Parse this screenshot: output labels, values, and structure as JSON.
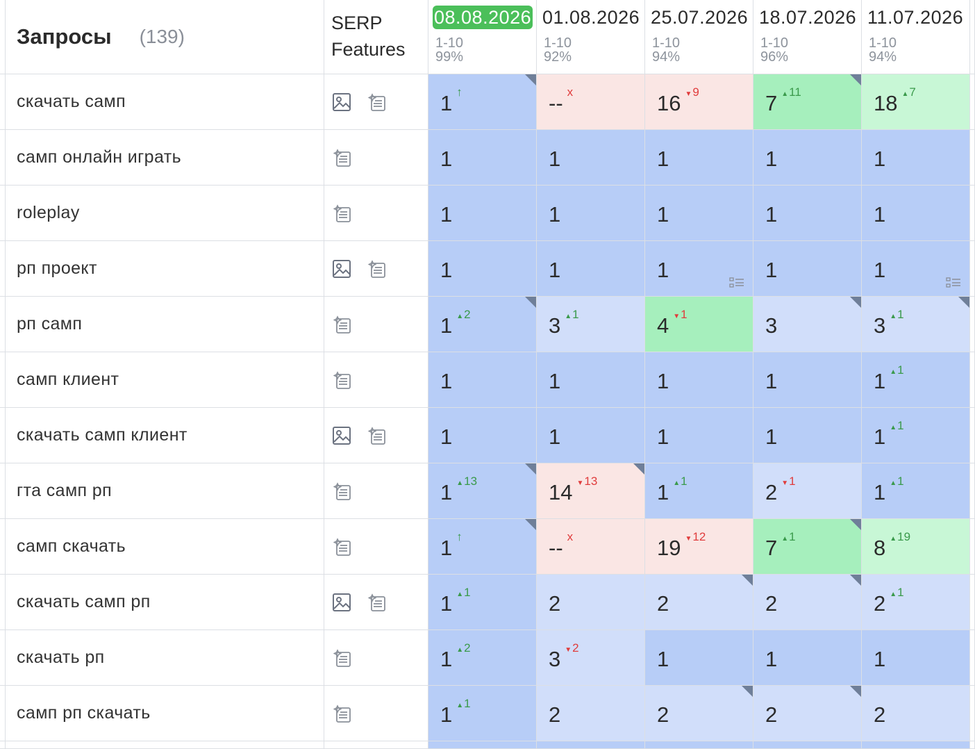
{
  "header": {
    "queries_title": "Запросы",
    "queries_count": "(139)",
    "serp_line1": "SERP",
    "serp_line2": "Features",
    "dates": [
      {
        "label": "08.08.2026",
        "range": "1-10",
        "percent": "99%",
        "active": true
      },
      {
        "label": "01.08.2026",
        "range": "1-10",
        "percent": "92%",
        "active": false
      },
      {
        "label": "25.07.2026",
        "range": "1-10",
        "percent": "94%",
        "active": false
      },
      {
        "label": "18.07.2026",
        "range": "1-10",
        "percent": "96%",
        "active": false
      },
      {
        "label": "11.07.2026",
        "range": "1-10",
        "percent": "94%",
        "active": false
      }
    ]
  },
  "rows": [
    {
      "keyword": "скачать самп",
      "serp": [
        "image-icon",
        "featured-snippet-icon"
      ],
      "cells": [
        {
          "pos": "1",
          "delta": "↑",
          "dir": "up",
          "bg": "top",
          "corner": true
        },
        {
          "pos": "--",
          "delta": "x",
          "dir": "down",
          "bg": "red"
        },
        {
          "pos": "16",
          "delta": "9",
          "dir": "down",
          "bg": "red"
        },
        {
          "pos": "7",
          "delta": "11",
          "dir": "up",
          "bg": "green",
          "corner": true
        },
        {
          "pos": "18",
          "delta": "7",
          "dir": "up",
          "bg": "lgreen"
        }
      ],
      "edge": "lgreen"
    },
    {
      "keyword": "самп онлайн играть",
      "serp": [
        "featured-snippet-icon"
      ],
      "cells": [
        {
          "pos": "1",
          "bg": "top"
        },
        {
          "pos": "1",
          "bg": "top"
        },
        {
          "pos": "1",
          "bg": "top"
        },
        {
          "pos": "1",
          "bg": "top"
        },
        {
          "pos": "1",
          "bg": "top"
        }
      ],
      "edge": "top"
    },
    {
      "keyword": "roleplay",
      "serp": [
        "featured-snippet-icon"
      ],
      "cells": [
        {
          "pos": "1",
          "bg": "top"
        },
        {
          "pos": "1",
          "bg": "top"
        },
        {
          "pos": "1",
          "bg": "top"
        },
        {
          "pos": "1",
          "bg": "top"
        },
        {
          "pos": "1",
          "bg": "top"
        }
      ],
      "edge": "top"
    },
    {
      "keyword": "рп проект",
      "serp": [
        "image-icon",
        "featured-snippet-icon"
      ],
      "cells": [
        {
          "pos": "1",
          "bg": "top"
        },
        {
          "pos": "1",
          "bg": "top"
        },
        {
          "pos": "1",
          "bg": "top",
          "snippet": true
        },
        {
          "pos": "1",
          "bg": "top"
        },
        {
          "pos": "1",
          "bg": "top",
          "snippet": true
        }
      ],
      "edge": "top"
    },
    {
      "keyword": "рп самп",
      "serp": [
        "featured-snippet-icon"
      ],
      "cells": [
        {
          "pos": "1",
          "delta": "2",
          "dir": "up",
          "bg": "top",
          "corner": true
        },
        {
          "pos": "3",
          "delta": "1",
          "dir": "up",
          "bg": "mid"
        },
        {
          "pos": "4",
          "delta": "1",
          "dir": "down",
          "bg": "green"
        },
        {
          "pos": "3",
          "bg": "mid",
          "corner": true
        },
        {
          "pos": "3",
          "delta": "1",
          "dir": "up",
          "bg": "mid",
          "corner": true
        }
      ],
      "edge": "green"
    },
    {
      "keyword": "самп клиент",
      "serp": [
        "featured-snippet-icon"
      ],
      "cells": [
        {
          "pos": "1",
          "bg": "top"
        },
        {
          "pos": "1",
          "bg": "top"
        },
        {
          "pos": "1",
          "bg": "top"
        },
        {
          "pos": "1",
          "bg": "top"
        },
        {
          "pos": "1",
          "delta": "1",
          "dir": "up",
          "bg": "top"
        }
      ],
      "edge": "top"
    },
    {
      "keyword": "скачать самп клиент",
      "serp": [
        "image-icon",
        "featured-snippet-icon"
      ],
      "cells": [
        {
          "pos": "1",
          "bg": "top"
        },
        {
          "pos": "1",
          "bg": "top"
        },
        {
          "pos": "1",
          "bg": "top"
        },
        {
          "pos": "1",
          "bg": "top"
        },
        {
          "pos": "1",
          "delta": "1",
          "dir": "up",
          "bg": "top"
        }
      ],
      "edge": "top"
    },
    {
      "keyword": "гта самп рп",
      "serp": [
        "featured-snippet-icon"
      ],
      "cells": [
        {
          "pos": "1",
          "delta": "13",
          "dir": "up",
          "bg": "top",
          "corner": true
        },
        {
          "pos": "14",
          "delta": "13",
          "dir": "down",
          "bg": "red",
          "corner": true
        },
        {
          "pos": "1",
          "delta": "1",
          "dir": "up",
          "bg": "top"
        },
        {
          "pos": "2",
          "delta": "1",
          "dir": "down",
          "bg": "mid"
        },
        {
          "pos": "1",
          "delta": "1",
          "dir": "up",
          "bg": "top"
        }
      ],
      "edge": "top"
    },
    {
      "keyword": "самп скачать",
      "serp": [
        "featured-snippet-icon"
      ],
      "cells": [
        {
          "pos": "1",
          "delta": "↑",
          "dir": "up",
          "bg": "top",
          "corner": true
        },
        {
          "pos": "--",
          "delta": "x",
          "dir": "down",
          "bg": "red"
        },
        {
          "pos": "19",
          "delta": "12",
          "dir": "down",
          "bg": "red"
        },
        {
          "pos": "7",
          "delta": "1",
          "dir": "up",
          "bg": "green",
          "corner": true
        },
        {
          "pos": "8",
          "delta": "19",
          "dir": "up",
          "bg": "lgreen"
        }
      ],
      "edge": "lgreen"
    },
    {
      "keyword": "скачать самп рп",
      "serp": [
        "image-icon",
        "featured-snippet-icon"
      ],
      "cells": [
        {
          "pos": "1",
          "delta": "1",
          "dir": "up",
          "bg": "top"
        },
        {
          "pos": "2",
          "bg": "mid"
        },
        {
          "pos": "2",
          "bg": "mid",
          "corner": true
        },
        {
          "pos": "2",
          "bg": "mid",
          "corner": true
        },
        {
          "pos": "2",
          "delta": "1",
          "dir": "up",
          "bg": "mid"
        }
      ],
      "edge": "mid"
    },
    {
      "keyword": "скачать рп",
      "serp": [
        "featured-snippet-icon"
      ],
      "cells": [
        {
          "pos": "1",
          "delta": "2",
          "dir": "up",
          "bg": "top"
        },
        {
          "pos": "3",
          "delta": "2",
          "dir": "down",
          "bg": "mid"
        },
        {
          "pos": "1",
          "bg": "top"
        },
        {
          "pos": "1",
          "bg": "top"
        },
        {
          "pos": "1",
          "bg": "top"
        }
      ],
      "edge": "top"
    },
    {
      "keyword": "самп рп скачать",
      "serp": [
        "featured-snippet-icon"
      ],
      "cells": [
        {
          "pos": "1",
          "delta": "1",
          "dir": "up",
          "bg": "top"
        },
        {
          "pos": "2",
          "bg": "mid"
        },
        {
          "pos": "2",
          "bg": "mid",
          "corner": true
        },
        {
          "pos": "2",
          "bg": "mid",
          "corner": true
        },
        {
          "pos": "2",
          "bg": "mid"
        }
      ],
      "edge": "mid"
    }
  ]
}
